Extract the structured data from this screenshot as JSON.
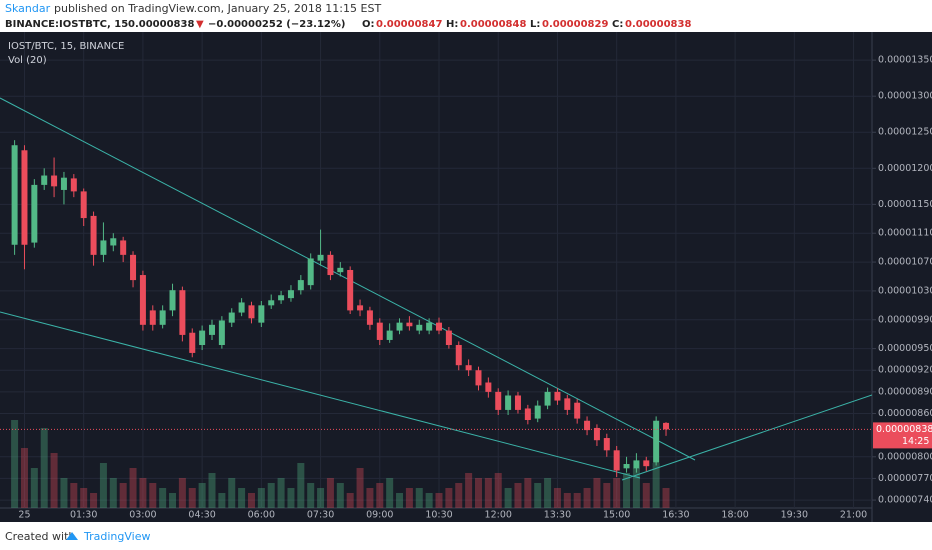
{
  "header": {
    "author": "Skandar",
    "published": "published on TradingView.com, January 25, 2018 11:15 EST",
    "symbol": "BINANCE:IOSTBTC, 15",
    "last": "0.00000838",
    "arrow": "▼",
    "change": "−0.00000252 (−23.12%)",
    "o_label": "O:",
    "o": "0.00000847",
    "h_label": "H:",
    "h": "0.00000848",
    "l_label": "L:",
    "l": "0.00000829",
    "c_label": "C:",
    "c": "0.00000838"
  },
  "footer": {
    "created": "Created with",
    "brand": "TradingView"
  },
  "chart_data": {
    "type": "candlestick",
    "legend": "IOST/BTC, 15, BINANCE",
    "volume_label": "Vol (20)",
    "up_color": "#53b987",
    "down_color": "#eb4d5c",
    "categories": [
      null,
      "25",
      null,
      null,
      null,
      null,
      null,
      "01:30",
      null,
      null,
      null,
      null,
      null,
      "03:00",
      null,
      null,
      null,
      null,
      null,
      "04:30",
      null,
      null,
      null,
      null,
      null,
      "06:00",
      null,
      null,
      null,
      null,
      null,
      "07:30",
      null,
      null,
      null,
      null,
      null,
      "09:00",
      null,
      null,
      null,
      null,
      null,
      "10:30",
      null,
      null,
      null,
      null,
      null,
      "12:00",
      null,
      null,
      null,
      null,
      null,
      "13:30",
      null,
      null,
      null,
      null,
      null,
      "15:00",
      null,
      null,
      null,
      null,
      null,
      "16:30",
      null,
      null,
      null,
      null,
      null,
      "18:00",
      null,
      null,
      null,
      null,
      null,
      "19:30",
      null,
      null,
      null,
      null,
      null,
      "21:00",
      null
    ],
    "open": [
      1.094e-05,
      1.225e-05,
      1.097e-05,
      1.177e-05,
      1.19e-05,
      1.17e-05,
      1.186e-05,
      1.168e-05,
      1.134e-05,
      1.08e-05,
      1.093e-05,
      1.1e-05,
      1.08e-05,
      1.052e-05,
      1.003e-05,
      9.83e-06,
      1.003e-05,
      1.031e-05,
      9.72e-06,
      9.55e-06,
      9.69e-06,
      9.55e-06,
      9.86e-06,
      1e-05,
      1.01e-05,
      9.86e-06,
      1.01e-05,
      1.017e-05,
      1.02e-05,
      1.031e-05,
      1.038e-05,
      1.072e-05,
      1.08e-05,
      1.056e-05,
      1.059e-05,
      1.01e-05,
      1.003e-05,
      9.86e-06,
      9.62e-06,
      9.75e-06,
      9.86e-06,
      9.75e-06,
      9.75e-06,
      9.86e-06,
      9.75e-06,
      9.55e-06,
      9.27e-06,
      9.2e-06,
      9.03e-06,
      8.9e-06,
      8.65e-06,
      8.85e-06,
      8.67e-06,
      8.53e-06,
      8.71e-06,
      8.9e-06,
      8.81e-06,
      8.75e-06,
      8.5e-06,
      8.4e-06,
      8.26e-06,
      8.09e-06,
      7.84e-06,
      7.84e-06,
      7.95e-06,
      7.92e-06,
      8.47e-06,
      null,
      null,
      null,
      null,
      null,
      null,
      null,
      null,
      null,
      null,
      null,
      null,
      null,
      null,
      null,
      null,
      null,
      null,
      null,
      null
    ],
    "high": [
      1.239e-05,
      1.232e-05,
      1.185e-05,
      1.2e-05,
      1.215e-05,
      1.195e-05,
      1.192e-05,
      1.172e-05,
      1.14e-05,
      1.125e-05,
      1.11e-05,
      1.105e-05,
      1.085e-05,
      1.058e-05,
      1.01e-05,
      1.01e-05,
      1.04e-05,
      1.036e-05,
      9.78e-06,
      9.82e-06,
      9.9e-06,
      9.95e-06,
      1.006e-05,
      1.02e-05,
      1.015e-05,
      1.016e-05,
      1.025e-05,
      1.03e-05,
      1.038e-05,
      1.052e-05,
      1.082e-05,
      1.115e-05,
      1.085e-05,
      1.07e-05,
      1.064e-05,
      1.018e-05,
      1.008e-05,
      9.92e-06,
      9.85e-06,
      9.92e-06,
      9.95e-06,
      9.9e-06,
      9.92e-06,
      9.93e-06,
      9.8e-06,
      9.6e-06,
      9.35e-06,
      9.25e-06,
      9.1e-06,
      8.95e-06,
      8.92e-06,
      8.9e-06,
      8.72e-06,
      8.78e-06,
      8.96e-06,
      8.95e-06,
      8.86e-06,
      8.8e-06,
      8.56e-06,
      8.45e-06,
      8.32e-06,
      8.15e-06,
      8e-06,
      8.05e-06,
      8e-06,
      8.56e-06,
      8.48e-06,
      null,
      null,
      null,
      null,
      null,
      null,
      null,
      null,
      null,
      null,
      null,
      null,
      null,
      null,
      null,
      null,
      null,
      null,
      null,
      null
    ],
    "low": [
      1.08e-05,
      1.06e-05,
      1.09e-05,
      1.17e-05,
      1.16e-05,
      1.15e-05,
      1.16e-05,
      1.12e-05,
      1.065e-05,
      1.07e-05,
      1.085e-05,
      1.07e-05,
      1.035e-05,
      9.75e-06,
      9.75e-06,
      9.78e-06,
      9.95e-06,
      9.6e-06,
      9.38e-06,
      9.48e-06,
      9.62e-06,
      9.5e-06,
      9.8e-06,
      9.95e-06,
      9.85e-06,
      9.8e-06,
      1.005e-05,
      1.012e-05,
      1.015e-05,
      1.025e-05,
      1.032e-05,
      1.065e-05,
      1.045e-05,
      1.05e-05,
      9.98e-06,
      9.95e-06,
      9.76e-06,
      9.55e-06,
      9.58e-06,
      9.7e-06,
      9.75e-06,
      9.7e-06,
      9.7e-06,
      9.7e-06,
      9.5e-06,
      9.2e-06,
      9.12e-06,
      8.92e-06,
      8.82e-06,
      8.58e-06,
      8.58e-06,
      8.6e-06,
      8.45e-06,
      8.48e-06,
      8.66e-06,
      8.72e-06,
      8.58e-06,
      8.46e-06,
      8.3e-06,
      8.15e-06,
      8e-06,
      7.72e-06,
      7.78e-06,
      7.78e-06,
      7.8e-06,
      7.88e-06,
      8.29e-06,
      null,
      null,
      null,
      null,
      null,
      null,
      null,
      null,
      null,
      null,
      null,
      null,
      null,
      null,
      null,
      null,
      null,
      null,
      null,
      null
    ],
    "close": [
      1.232e-05,
      1.094e-05,
      1.177e-05,
      1.19e-05,
      1.175e-05,
      1.187e-05,
      1.168e-05,
      1.131e-05,
      1.08e-05,
      1.1e-05,
      1.103e-05,
      1.08e-05,
      1.045e-05,
      9.83e-06,
      9.83e-06,
      1.003e-05,
      1.031e-05,
      9.69e-06,
      9.44e-06,
      9.75e-06,
      9.83e-06,
      9.89e-06,
      1e-05,
      1.014e-05,
      9.92e-06,
      1.01e-05,
      1.017e-05,
      1.024e-05,
      1.031e-05,
      1.045e-05,
      1.075e-05,
      1.08e-05,
      1.052e-05,
      1.062e-05,
      1.003e-05,
      1.003e-05,
      9.83e-06,
      9.62e-06,
      9.75e-06,
      9.86e-06,
      9.81e-06,
      9.83e-06,
      9.86e-06,
      9.75e-06,
      9.55e-06,
      9.27e-06,
      9.2e-06,
      8.99e-06,
      8.9e-06,
      8.65e-06,
      8.85e-06,
      8.65e-06,
      8.51e-06,
      8.71e-06,
      8.9e-06,
      8.78e-06,
      8.65e-06,
      8.53e-06,
      8.37e-06,
      8.23e-06,
      8.09e-06,
      7.81e-06,
      7.9e-06,
      7.95e-06,
      7.87e-06,
      8.5e-06,
      8.38e-06,
      null,
      null,
      null,
      null,
      null,
      null,
      null,
      null,
      null,
      null,
      null,
      null,
      null,
      null,
      null,
      null,
      null,
      null,
      null,
      null
    ],
    "volume": [
      88,
      60,
      40,
      80,
      55,
      30,
      25,
      20,
      15,
      45,
      30,
      25,
      40,
      30,
      25,
      20,
      15,
      30,
      20,
      25,
      35,
      15,
      30,
      20,
      15,
      20,
      25,
      30,
      20,
      45,
      25,
      20,
      30,
      25,
      15,
      40,
      20,
      25,
      30,
      15,
      20,
      20,
      15,
      15,
      20,
      25,
      35,
      30,
      30,
      35,
      20,
      25,
      30,
      25,
      30,
      20,
      15,
      15,
      20,
      30,
      25,
      30,
      35,
      40,
      25,
      45,
      20,
      null,
      null,
      null,
      null,
      null,
      null,
      null,
      null,
      null,
      null,
      null,
      null,
      null,
      null,
      null,
      null,
      null,
      null,
      null,
      null
    ],
    "ylim": [
      7.29e-06,
      1.389e-05
    ],
    "yticks": [
      {
        "value": 1.35e-05,
        "label": "0.00001350"
      },
      {
        "value": 1.3e-05,
        "label": "0.00001300"
      },
      {
        "value": 1.25e-05,
        "label": "0.00001250"
      },
      {
        "value": 1.2e-05,
        "label": "0.00001200"
      },
      {
        "value": 1.15e-05,
        "label": "0.00001150"
      },
      {
        "value": 1.11e-05,
        "label": "0.00001110"
      },
      {
        "value": 1.07e-05,
        "label": "0.00001070"
      },
      {
        "value": 1.03e-05,
        "label": "0.00001030"
      },
      {
        "value": 9.9e-06,
        "label": "0.00000990"
      },
      {
        "value": 9.5e-06,
        "label": "0.00000950"
      },
      {
        "value": 9.2e-06,
        "label": "0.00000920"
      },
      {
        "value": 8.9e-06,
        "label": "0.00000890"
      },
      {
        "value": 8.6e-06,
        "label": "0.00000860"
      },
      {
        "value": 8e-06,
        "label": "0.00000800"
      },
      {
        "value": 7.7e-06,
        "label": "0.00000770"
      },
      {
        "value": 7.4e-06,
        "label": "0.00000740"
      }
    ],
    "last_price": {
      "value": 8.38e-06,
      "label": "0.00000838"
    },
    "countdown": "14:25",
    "grid": true
  }
}
